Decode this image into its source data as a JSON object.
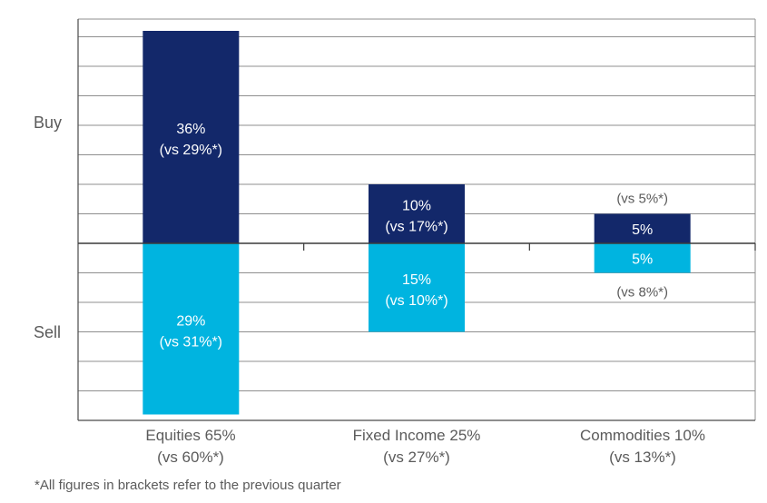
{
  "chart_data": {
    "type": "bar",
    "y_labels": {
      "buy": "Buy",
      "sell": "Sell"
    },
    "categories": [
      {
        "name": "Equities 65%",
        "prev": "(vs 60%*)"
      },
      {
        "name": "Fixed Income 25%",
        "prev": "(vs 27%*)"
      },
      {
        "name": "Commodities 10%",
        "prev": "(vs 13%*)"
      }
    ],
    "series": [
      {
        "side": "buy",
        "color": "#13286a",
        "values": [
          36,
          10,
          5
        ],
        "labels": [
          "36%",
          "10%",
          "5%"
        ],
        "prev_labels": [
          "(vs 29%*)",
          "(vs 17%*)",
          "(vs 5%*)"
        ]
      },
      {
        "side": "sell",
        "color": "#00b4e0",
        "values": [
          29,
          15,
          5
        ],
        "labels": [
          "29%",
          "15%",
          "5%"
        ],
        "prev_labels": [
          "(vs 31%*)",
          "(vs 10%*)",
          "(vs 8%*)"
        ]
      }
    ],
    "ylim": [
      -30,
      38
    ],
    "grid": true
  },
  "footnote": "*All figures in brackets refer to the previous quarter"
}
